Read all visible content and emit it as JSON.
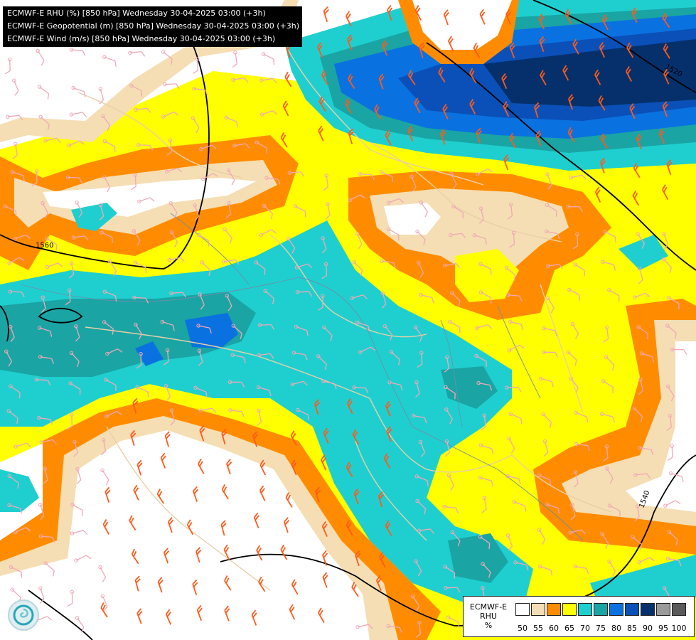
{
  "titles": [
    "ECMWF-E RHU (%) [850 hPa] Wednesday 30-04-2025 03:00 (+3h)",
    "ECMWF-E Geopotential (m) [850 hPa] Wednesday 30-04-2025 03:00 (+3h)",
    "ECMWF-E Wind (m/s) [850 hPa] Wednesday 30-04-2025 03:00 (+3h)"
  ],
  "legend": {
    "title_lines": [
      "ECMWF-E",
      "RHU",
      "%"
    ],
    "swatch_colors": [
      "#ffffff",
      "#f5deb3",
      "#ff8c00",
      "#ffff00",
      "#1fcfcf",
      "#1aa4a4",
      "#0a71e0",
      "#0a50b8",
      "#05306b",
      "#9a9a9a",
      "#5a5a5a"
    ],
    "ticks": [
      "50",
      "55",
      "60",
      "65",
      "70",
      "75",
      "80",
      "85",
      "90",
      "95",
      "100"
    ]
  },
  "contour_labels": [
    "1560",
    "1540",
    "1520"
  ],
  "colors": {
    "geopotential_contour": "#000000",
    "borders": "#e8cfa8",
    "rivers": "#6e8fa8",
    "wind_light": "#f0a8b8",
    "wind_strong": "#ff5a1a"
  },
  "logo_icon": "ecmwf-logo-icon"
}
